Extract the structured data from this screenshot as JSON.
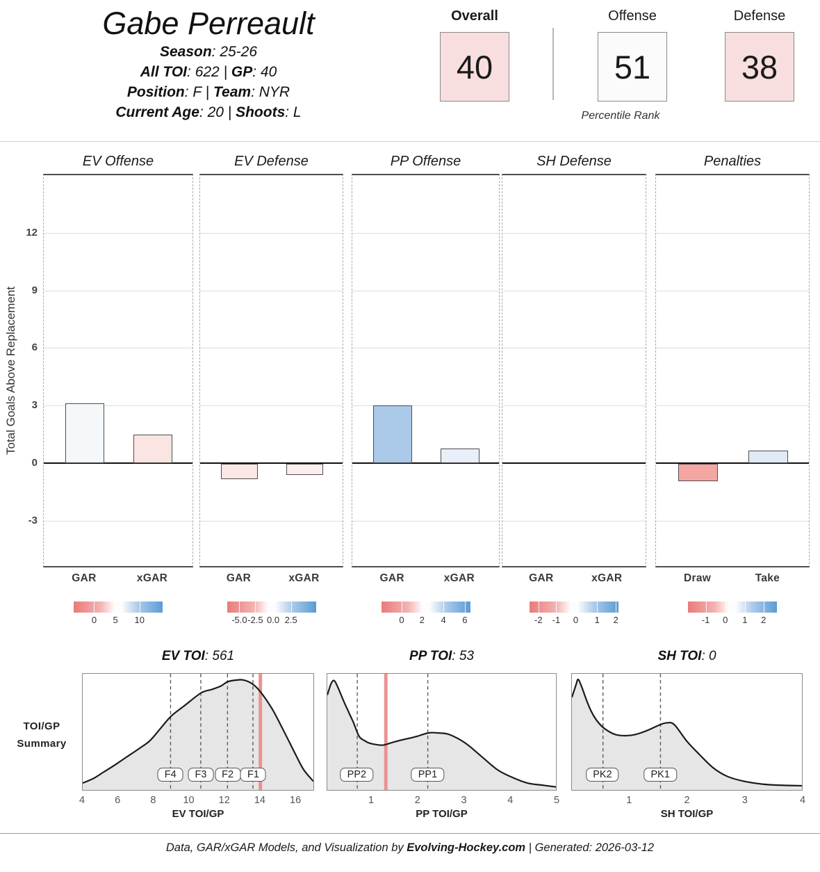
{
  "header": {
    "player_name": "Gabe Perreault",
    "info_lines": [
      [
        {
          "t": "Season",
          "b": 1
        },
        {
          "t": ": 25-26"
        }
      ],
      [
        {
          "t": "All TOI",
          "b": 1
        },
        {
          "t": ": 622  |  "
        },
        {
          "t": "GP",
          "b": 1
        },
        {
          "t": ": 40"
        }
      ],
      [
        {
          "t": "Position",
          "b": 1
        },
        {
          "t": ": F  |  "
        },
        {
          "t": "Team",
          "b": 1
        },
        {
          "t": ": NYR"
        }
      ],
      [
        {
          "t": "Current Age",
          "b": 1
        },
        {
          "t": ": 20  |  "
        },
        {
          "t": "Shoots",
          "b": 1
        },
        {
          "t": ": L"
        }
      ]
    ]
  },
  "percentile": {
    "section_label": "Percentile Rank",
    "boxes": [
      {
        "label": "Overall",
        "value": "40",
        "bold_label": true,
        "bg": "#f8dede"
      },
      {
        "label": "Offense",
        "value": "51",
        "bold_label": false,
        "bg": "#fcfbfb"
      },
      {
        "label": "Defense",
        "value": "38",
        "bold_label": false,
        "bg": "#f8dede"
      }
    ]
  },
  "gar_chart": {
    "ylabel": "Total Goals Above Replacement",
    "yticks": [
      12,
      9,
      6,
      3,
      0,
      -3
    ],
    "ylim": [
      -5.44,
      15.08
    ]
  },
  "chart_data": [
    {
      "type": "bar",
      "title": "EV Offense",
      "categories": [
        "GAR",
        "xGAR"
      ],
      "values": [
        3.1,
        1.5
      ],
      "bar_colors": [
        "#f4f8fb",
        "#fbe5e2"
      ],
      "ylabel": "Total Goals Above Replacement",
      "ylim": [
        -5.44,
        15.08
      ],
      "colorbar": {
        "ticks": [
          "0",
          "5",
          "10"
        ],
        "positions_pct": [
          23,
          47,
          74
        ]
      }
    },
    {
      "type": "bar",
      "title": "EV Defense",
      "categories": [
        "GAR",
        "xGAR"
      ],
      "values": [
        -0.8,
        -0.6
      ],
      "bar_colors": [
        "#fbe7e5",
        "#fceeec"
      ],
      "ylabel": "Total Goals Above Replacement",
      "ylim": [
        -5.44,
        15.08
      ],
      "colorbar": {
        "ticks": [
          "-5.0",
          "-2.5",
          "0.0",
          "2.5"
        ],
        "positions_pct": [
          14,
          32,
          52,
          72
        ]
      }
    },
    {
      "type": "bar",
      "title": "PP Offense",
      "categories": [
        "GAR",
        "xGAR"
      ],
      "values": [
        3.0,
        0.75
      ],
      "bar_colors": [
        "#abc9e8",
        "#e8eff8"
      ],
      "ylabel": "Total Goals Above Replacement",
      "ylim": [
        -5.44,
        15.08
      ],
      "colorbar": {
        "ticks": [
          "0",
          "2",
          "4",
          "6"
        ],
        "positions_pct": [
          23,
          46,
          70,
          94
        ]
      }
    },
    {
      "type": "bar",
      "title": "SH Defense",
      "categories": [
        "GAR",
        "xGAR"
      ],
      "values": [
        0,
        0
      ],
      "bar_colors": [
        "#ffffff",
        "#ffffff"
      ],
      "ylabel": "Total Goals Above Replacement",
      "ylim": [
        -5.44,
        15.08
      ],
      "colorbar": {
        "ticks": [
          "-2",
          "-1",
          "0",
          "1",
          "2"
        ],
        "positions_pct": [
          10,
          30,
          52,
          76,
          97
        ]
      }
    },
    {
      "type": "bar",
      "title": "Penalties",
      "categories": [
        "Draw",
        "Take"
      ],
      "values": [
        -0.9,
        0.65
      ],
      "bar_colors": [
        "#f4a6a3",
        "#e1ebf7"
      ],
      "ylabel": "Total Goals Above Replacement",
      "ylim": [
        -5.44,
        15.08
      ],
      "colorbar": {
        "ticks": [
          "-1",
          "0",
          "1",
          "2"
        ],
        "positions_pct": [
          20,
          42,
          64,
          85
        ]
      }
    },
    {
      "type": "area",
      "title_label": "EV TOI",
      "title_value": "561",
      "xlabel": "EV TOI/GP",
      "xmin": 4,
      "xmax": 17.05,
      "xticks": [
        4,
        6,
        8,
        10,
        12,
        14,
        16
      ],
      "role_lines": [
        {
          "label": "F4",
          "x": 8.97
        },
        {
          "label": "F3",
          "x": 10.68
        },
        {
          "label": "F2",
          "x": 12.19
        },
        {
          "label": "F1",
          "x": 13.63
        }
      ],
      "player_line": 14.05,
      "points": [
        [
          4,
          0.05
        ],
        [
          4.6,
          0.09
        ],
        [
          5.2,
          0.15
        ],
        [
          5.8,
          0.21
        ],
        [
          6.5,
          0.285
        ],
        [
          7.2,
          0.36
        ],
        [
          7.8,
          0.43
        ],
        [
          8.4,
          0.54
        ],
        [
          9,
          0.65
        ],
        [
          9.8,
          0.75
        ],
        [
          10.7,
          0.86
        ],
        [
          11.3,
          0.89
        ],
        [
          11.8,
          0.92
        ],
        [
          12.2,
          0.96
        ],
        [
          12.7,
          0.975
        ],
        [
          13.1,
          0.975
        ],
        [
          13.6,
          0.94
        ],
        [
          14.05,
          0.87
        ],
        [
          14.7,
          0.72
        ],
        [
          15.3,
          0.54
        ],
        [
          16,
          0.32
        ],
        [
          16.5,
          0.17
        ],
        [
          17.05,
          0.065
        ]
      ]
    },
    {
      "type": "area",
      "title_label": "PP TOI",
      "title_value": "53",
      "xlabel": "PP TOI/GP",
      "xmin": 0.04,
      "xmax": 5,
      "xticks": [
        1,
        2,
        3,
        4,
        5
      ],
      "role_lines": [
        {
          "label": "PP2",
          "x": 0.69
        },
        {
          "label": "PP1",
          "x": 2.22
        }
      ],
      "player_line": 1.31,
      "points": [
        [
          0.04,
          0.84
        ],
        [
          0.12,
          0.94
        ],
        [
          0.19,
          0.97
        ],
        [
          0.28,
          0.9
        ],
        [
          0.39,
          0.79
        ],
        [
          0.5,
          0.69
        ],
        [
          0.6,
          0.6
        ],
        [
          0.73,
          0.47
        ],
        [
          0.85,
          0.43
        ],
        [
          0.94,
          0.41
        ],
        [
          1.1,
          0.395
        ],
        [
          1.24,
          0.39
        ],
        [
          1.34,
          0.4
        ],
        [
          1.5,
          0.42
        ],
        [
          1.69,
          0.44
        ],
        [
          1.85,
          0.455
        ],
        [
          1.99,
          0.47
        ],
        [
          2.24,
          0.5
        ],
        [
          2.43,
          0.5
        ],
        [
          2.69,
          0.485
        ],
        [
          3.03,
          0.41
        ],
        [
          3.38,
          0.29
        ],
        [
          3.73,
          0.17
        ],
        [
          4.03,
          0.105
        ],
        [
          4.38,
          0.05
        ],
        [
          4.72,
          0.03
        ],
        [
          5,
          0.015
        ]
      ]
    },
    {
      "type": "area",
      "title_label": "SH TOI",
      "title_value": "0",
      "xlabel": "SH TOI/GP",
      "xmin": 0,
      "xmax": 4,
      "xticks": [
        1,
        2,
        3,
        4
      ],
      "role_lines": [
        {
          "label": "PK2",
          "x": 0.54
        },
        {
          "label": "PK1",
          "x": 1.54
        }
      ],
      "player_line": null,
      "points": [
        [
          0,
          0.82
        ],
        [
          0.07,
          0.93
        ],
        [
          0.11,
          0.98
        ],
        [
          0.18,
          0.9
        ],
        [
          0.25,
          0.8
        ],
        [
          0.33,
          0.7
        ],
        [
          0.42,
          0.62
        ],
        [
          0.54,
          0.55
        ],
        [
          0.73,
          0.49
        ],
        [
          0.9,
          0.475
        ],
        [
          1.1,
          0.485
        ],
        [
          1.3,
          0.52
        ],
        [
          1.54,
          0.575
        ],
        [
          1.65,
          0.59
        ],
        [
          1.78,
          0.575
        ],
        [
          2,
          0.425
        ],
        [
          2.22,
          0.305
        ],
        [
          2.46,
          0.185
        ],
        [
          2.7,
          0.11
        ],
        [
          3,
          0.065
        ],
        [
          3.42,
          0.035
        ],
        [
          4,
          0.025
        ]
      ]
    }
  ],
  "toi": {
    "section_label_lines": [
      "TOI/GP",
      "Summary"
    ]
  },
  "footer": {
    "parts": [
      {
        "t": "Data, GAR/xGAR Models, and Visualization by "
      },
      {
        "t": "Evolving-Hockey.com",
        "b": 1
      },
      {
        "t": "  |  Generated: 2026-03-12"
      }
    ]
  },
  "colors": {
    "box_pink": "#f8dede",
    "box_neutral": "#fcfbfb",
    "scale_left": "#e97b7b",
    "scale_right": "#5b9bd5",
    "red_line": "#ec9292",
    "density_fill": "#e6e6e6",
    "curve_stroke": "#1a1a1a"
  }
}
